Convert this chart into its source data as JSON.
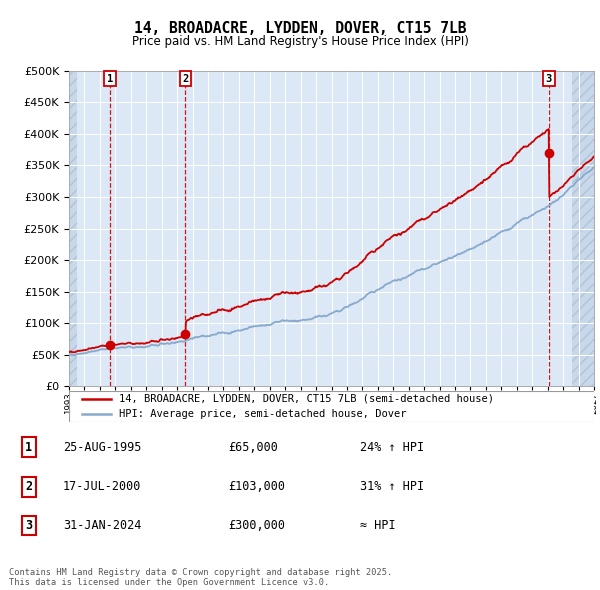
{
  "title": "14, BROADACRE, LYDDEN, DOVER, CT15 7LB",
  "subtitle": "Price paid vs. HM Land Registry's House Price Index (HPI)",
  "ylim": [
    0,
    500000
  ],
  "yticks": [
    0,
    50000,
    100000,
    150000,
    200000,
    250000,
    300000,
    350000,
    400000,
    450000,
    500000
  ],
  "transactions": [
    {
      "date_num": 1995.648,
      "price": 65000,
      "label": "1"
    },
    {
      "date_num": 2000.538,
      "price": 103000,
      "label": "2"
    },
    {
      "date_num": 2024.079,
      "price": 300000,
      "label": "3"
    }
  ],
  "vline_color": "#cc0000",
  "marker_color": "#cc0000",
  "hpi_color": "#88aacc",
  "price_color": "#cc0000",
  "chart_bg_color": "#dce8f5",
  "hatch_facecolor": "#c8d8ea",
  "hatch_edgecolor": "#b0c4d8",
  "grid_color": "#ffffff",
  "legend_entries": [
    "14, BROADACRE, LYDDEN, DOVER, CT15 7LB (semi-detached house)",
    "HPI: Average price, semi-detached house, Dover"
  ],
  "table_rows": [
    {
      "num": "1",
      "date": "25-AUG-1995",
      "price": "£65,000",
      "change": "24% ↑ HPI"
    },
    {
      "num": "2",
      "date": "17-JUL-2000",
      "price": "£103,000",
      "change": "31% ↑ HPI"
    },
    {
      "num": "3",
      "date": "31-JAN-2024",
      "price": "£300,000",
      "change": "≈ HPI"
    }
  ],
  "footer": "Contains HM Land Registry data © Crown copyright and database right 2025.\nThis data is licensed under the Open Government Licence v3.0.",
  "xmin": 1993.0,
  "xmax": 2027.0,
  "hatch_left_end": 1993.5,
  "hatch_right_start": 2025.6
}
